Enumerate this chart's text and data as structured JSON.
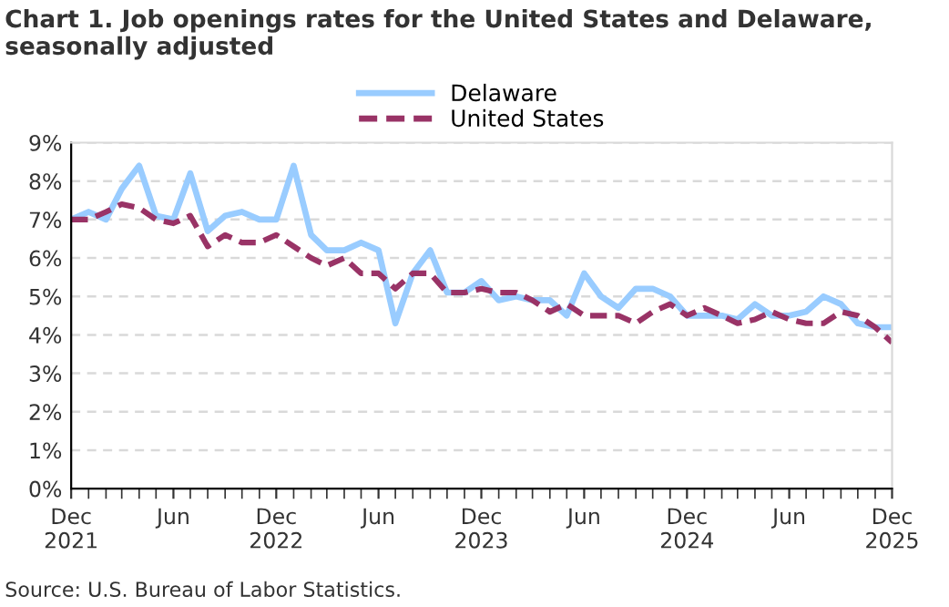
{
  "chart_data": {
    "type": "line",
    "title": "Chart 1. Job openings rates for the United States and Delaware, seasonally adjusted",
    "x": [
      "2021-12",
      "2022-01",
      "2022-02",
      "2022-03",
      "2022-04",
      "2022-05",
      "2022-06",
      "2022-07",
      "2022-08",
      "2022-09",
      "2022-10",
      "2022-11",
      "2022-12",
      "2023-01",
      "2023-02",
      "2023-03",
      "2023-04",
      "2023-05",
      "2023-06",
      "2023-07",
      "2023-08",
      "2023-09",
      "2023-10",
      "2023-11",
      "2023-12",
      "2024-01",
      "2024-02",
      "2024-03",
      "2024-04",
      "2024-05",
      "2024-06",
      "2024-07",
      "2024-08",
      "2024-09",
      "2024-10",
      "2024-11",
      "2024-12",
      "2025-01",
      "2025-02",
      "2025-03",
      "2025-04",
      "2025-05",
      "2025-06",
      "2025-07",
      "2025-08",
      "2025-09",
      "2025-10",
      "2025-11",
      "2025-12"
    ],
    "series": [
      {
        "name": "Delaware",
        "color": "#99ccff",
        "line_style": "solid",
        "values": [
          7.0,
          7.2,
          7.0,
          7.8,
          8.4,
          7.1,
          7.0,
          8.2,
          6.7,
          7.1,
          7.2,
          7.0,
          7.0,
          8.4,
          6.6,
          6.2,
          6.2,
          6.4,
          6.2,
          4.3,
          5.6,
          6.2,
          5.1,
          5.1,
          5.4,
          4.9,
          5.0,
          4.9,
          4.9,
          4.5,
          5.6,
          5.0,
          4.7,
          5.2,
          5.2,
          5.0,
          4.5,
          4.5,
          4.5,
          4.4,
          4.8,
          4.5,
          4.5,
          4.6,
          5.0,
          4.8,
          4.3,
          4.2,
          4.2
        ]
      },
      {
        "name": "United States",
        "color": "#993366",
        "line_style": "dashed",
        "values": [
          7.0,
          7.0,
          7.2,
          7.4,
          7.3,
          7.0,
          6.9,
          7.1,
          6.3,
          6.6,
          6.4,
          6.4,
          6.6,
          6.3,
          6.0,
          5.8,
          6.0,
          5.6,
          5.6,
          5.2,
          5.6,
          5.6,
          5.1,
          5.1,
          5.2,
          5.1,
          5.1,
          4.9,
          4.6,
          4.8,
          4.5,
          4.5,
          4.5,
          4.3,
          4.6,
          4.8,
          4.5,
          4.7,
          4.5,
          4.3,
          4.4,
          4.6,
          4.4,
          4.3,
          4.3,
          4.6,
          4.5,
          4.2,
          3.8
        ]
      }
    ],
    "xlim": [
      "2021-12",
      "2025-12"
    ],
    "xticks": [
      {
        "value": "2021-12",
        "label": "Dec\n2021"
      },
      {
        "value": "2022-06",
        "label": "Jun"
      },
      {
        "value": "2022-12",
        "label": "Dec\n2022"
      },
      {
        "value": "2023-06",
        "label": "Jun"
      },
      {
        "value": "2023-12",
        "label": "Dec\n2023"
      },
      {
        "value": "2024-06",
        "label": "Jun"
      },
      {
        "value": "2024-12",
        "label": "Dec\n2024"
      },
      {
        "value": "2025-06",
        "label": "Jun"
      },
      {
        "value": "2025-12",
        "label": "Dec\n2025"
      }
    ],
    "ylim": [
      0,
      9
    ],
    "yticks": [
      {
        "value": 0,
        "label": "0%"
      },
      {
        "value": 1,
        "label": "1%"
      },
      {
        "value": 2,
        "label": "2%"
      },
      {
        "value": 3,
        "label": "3%"
      },
      {
        "value": 4,
        "label": "4%"
      },
      {
        "value": 5,
        "label": "5%"
      },
      {
        "value": 6,
        "label": "6%"
      },
      {
        "value": 7,
        "label": "7%"
      },
      {
        "value": 8,
        "label": "8%"
      },
      {
        "value": 9,
        "label": "9%"
      }
    ],
    "grid": "y",
    "legend": "top",
    "marker": "none",
    "annotations": [
      "Source: U.S. Bureau of Labor Statistics."
    ]
  }
}
